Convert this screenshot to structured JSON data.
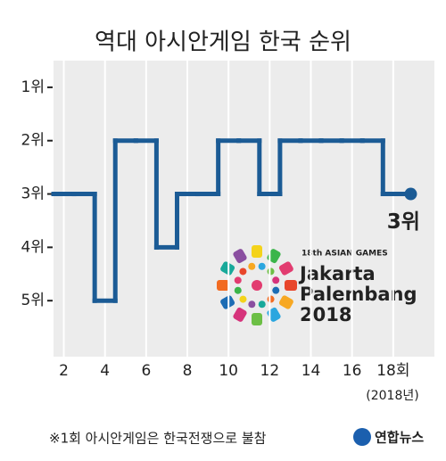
{
  "chart_data": {
    "type": "line",
    "title": "역대 아시안게임 한국 순위",
    "drawstyle": "steps-mid",
    "x": [
      2,
      3,
      4,
      5,
      6,
      7,
      8,
      9,
      10,
      11,
      12,
      13,
      14,
      15,
      16,
      17,
      18
    ],
    "values": [
      3,
      3,
      5,
      2,
      2,
      4,
      3,
      3,
      2,
      2,
      3,
      2,
      2,
      2,
      2,
      2,
      3
    ],
    "value_labels": [
      null,
      null,
      null,
      null,
      null,
      null,
      null,
      null,
      null,
      null,
      null,
      null,
      null,
      null,
      null,
      null,
      "3위"
    ],
    "color": "#1b5b95",
    "xlim": [
      1.5,
      20
    ],
    "xticks": [
      2,
      4,
      6,
      8,
      10,
      12,
      14,
      16,
      {
        "value": 18,
        "label": "18회"
      }
    ],
    "ylim": [
      6.05,
      0.5
    ],
    "yticks": [
      {
        "value": 1,
        "label": "1위"
      },
      {
        "value": 2,
        "label": "2위"
      },
      {
        "value": 3,
        "label": "3위"
      },
      {
        "value": 4,
        "label": "4위"
      },
      {
        "value": 5,
        "label": "5위"
      }
    ],
    "grid": "x",
    "annotations": [
      "(2018년)",
      "※1회 아시안게임은 한국전쟁으로 불참"
    ]
  },
  "logo": {
    "event": "18th ASIAN GAMES",
    "line1": "Jakarta",
    "line2": "Palembang",
    "line3": "2018"
  },
  "source": "연합뉴스"
}
